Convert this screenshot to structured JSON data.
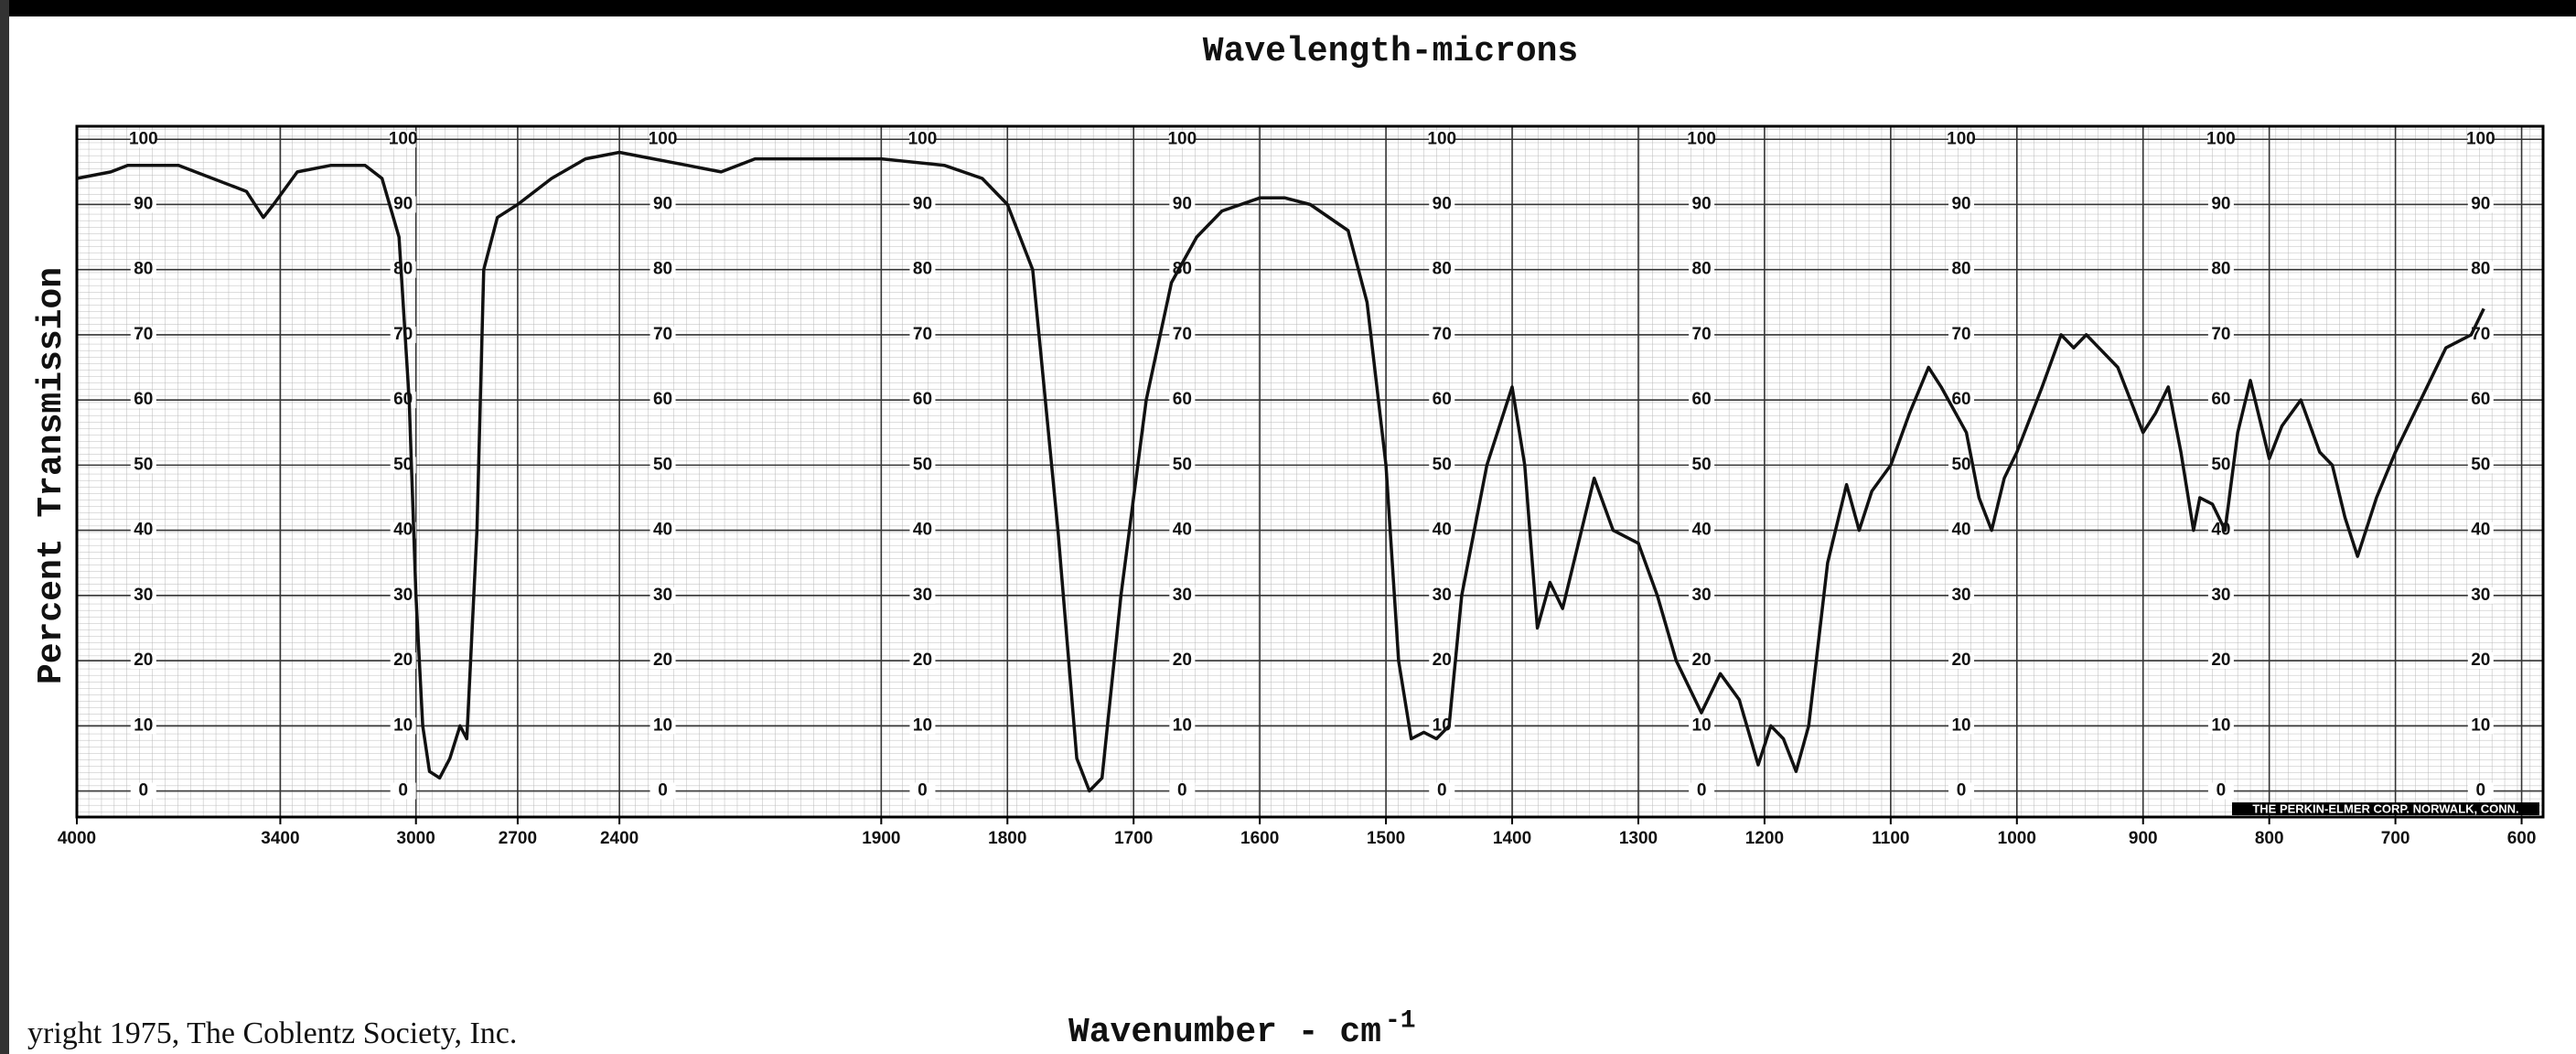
{
  "chart_data": {
    "type": "line",
    "title": "Wavelength-microns",
    "x_label": "Wavenumber - cm",
    "x_label_exponent": "-1",
    "y_label": "Percent Transmission",
    "copyright": "yright 1975, The Coblentz Society, Inc.",
    "maker": "THE PERKIN-ELMER CORP. NORWALK, CONN.",
    "color": "#111111",
    "grid": true,
    "xlim": [
      4000,
      583
    ],
    "ylim": [
      -4,
      102
    ],
    "xticks": [
      4000,
      3400,
      3000,
      2700,
      2400,
      1900,
      1800,
      1700,
      1600,
      1500,
      1400,
      1300,
      1200,
      1100,
      1000,
      900,
      800,
      700,
      600
    ],
    "yticks": [
      0,
      10,
      20,
      30,
      40,
      50,
      60,
      70,
      80,
      90,
      100
    ],
    "x": [
      4000,
      3900,
      3850,
      3700,
      3600,
      3500,
      3450,
      3420,
      3350,
      3250,
      3150,
      3100,
      3050,
      3020,
      3000,
      2980,
      2960,
      2930,
      2900,
      2870,
      2850,
      2820,
      2800,
      2760,
      2700,
      2600,
      2500,
      2400,
      2300,
      2200,
      2100,
      2000,
      1950,
      1900,
      1850,
      1820,
      1800,
      1780,
      1760,
      1745,
      1735,
      1725,
      1710,
      1690,
      1670,
      1650,
      1630,
      1600,
      1580,
      1560,
      1530,
      1515,
      1500,
      1490,
      1480,
      1470,
      1460,
      1450,
      1440,
      1420,
      1400,
      1390,
      1380,
      1370,
      1360,
      1345,
      1335,
      1320,
      1300,
      1285,
      1270,
      1250,
      1235,
      1220,
      1205,
      1195,
      1185,
      1175,
      1165,
      1150,
      1135,
      1125,
      1115,
      1100,
      1085,
      1070,
      1060,
      1040,
      1030,
      1020,
      1010,
      1000,
      980,
      965,
      955,
      945,
      935,
      920,
      900,
      890,
      880,
      870,
      860,
      855,
      845,
      835,
      825,
      815,
      800,
      790,
      775,
      760,
      750,
      740,
      730,
      715,
      700,
      680,
      660,
      640,
      630
    ],
    "values": [
      94,
      95,
      96,
      96,
      94,
      92,
      88,
      90,
      95,
      96,
      96,
      94,
      85,
      60,
      30,
      10,
      3,
      2,
      5,
      10,
      8,
      40,
      80,
      88,
      90,
      94,
      97,
      98,
      97,
      96,
      95,
      97,
      97,
      97,
      96,
      94,
      90,
      80,
      40,
      5,
      0,
      2,
      30,
      60,
      78,
      85,
      89,
      91,
      91,
      90,
      86,
      75,
      50,
      20,
      8,
      9,
      8,
      10,
      30,
      50,
      62,
      50,
      25,
      32,
      28,
      40,
      48,
      40,
      38,
      30,
      20,
      12,
      18,
      14,
      4,
      10,
      8,
      3,
      10,
      35,
      47,
      40,
      46,
      50,
      58,
      65,
      62,
      55,
      45,
      40,
      48,
      52,
      62,
      70,
      68,
      70,
      68,
      65,
      55,
      58,
      62,
      52,
      40,
      45,
      44,
      40,
      55,
      63,
      51,
      56,
      60,
      52,
      50,
      42,
      36,
      45,
      52,
      60,
      68,
      70,
      74
    ]
  }
}
